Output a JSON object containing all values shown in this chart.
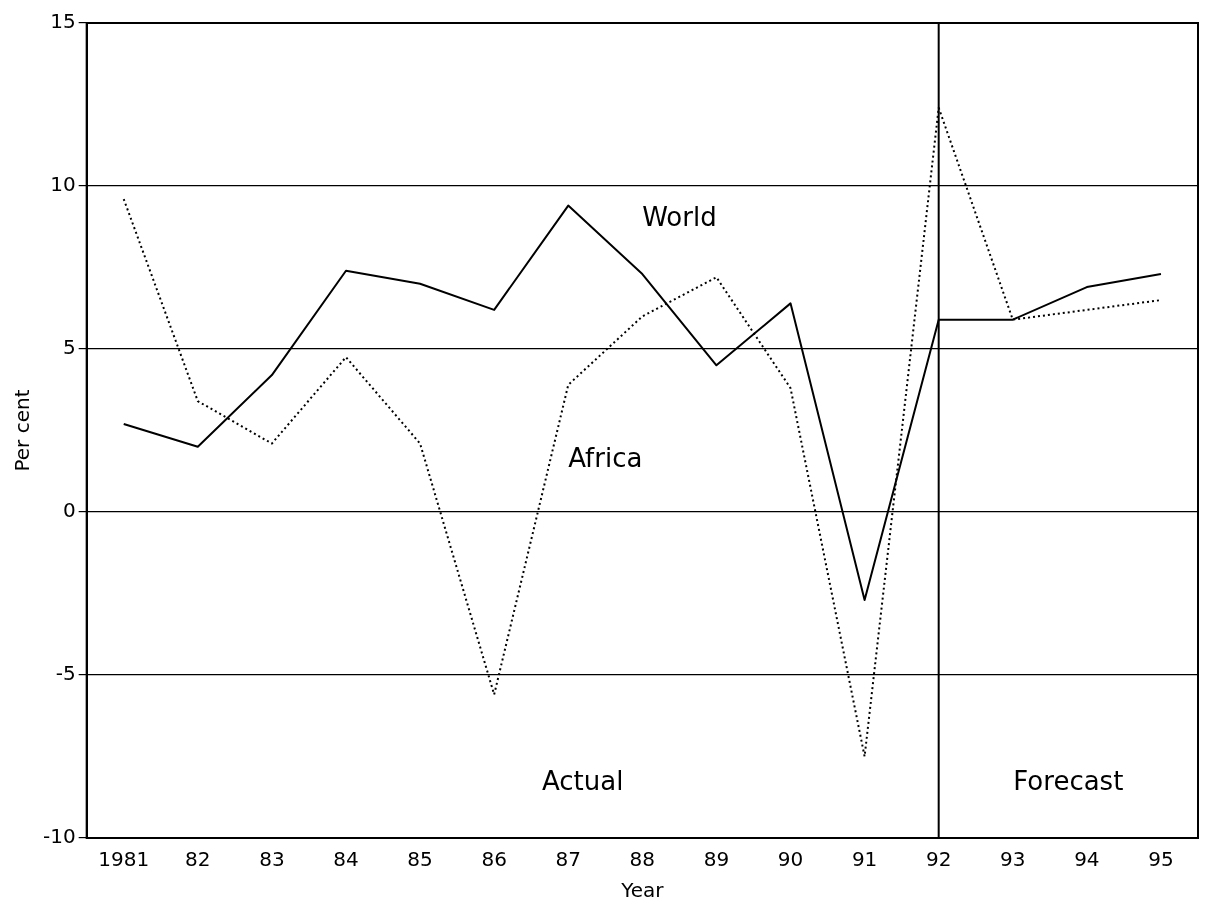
{
  "chart_data": {
    "type": "line",
    "xlabel": "Year",
    "ylabel": "Per cent",
    "categories": [
      "1981",
      "82",
      "83",
      "84",
      "85",
      "86",
      "87",
      "88",
      "89",
      "90",
      "91",
      "92",
      "93",
      "94",
      "95"
    ],
    "series": [
      {
        "name": "World",
        "color": "#000000",
        "line_style": "solid",
        "values": [
          2.7,
          2.0,
          4.2,
          7.4,
          7.0,
          6.2,
          9.4,
          7.3,
          4.5,
          6.4,
          -2.7,
          5.9,
          5.9,
          6.9,
          7.3
        ]
      },
      {
        "name": "Africa",
        "color": "#000000",
        "line_style": "dotted",
        "values": [
          9.6,
          3.4,
          2.1,
          4.75,
          2.1,
          -5.6,
          3.9,
          6.0,
          7.2,
          3.8,
          -7.5,
          12.4,
          5.9,
          6.2,
          6.5
        ]
      }
    ],
    "ylim": [
      -10,
      15
    ],
    "yticks": [
      -10,
      -5,
      0,
      5,
      10,
      15
    ],
    "grid": "y",
    "legend": false,
    "marker": "none",
    "ref_lines": [
      {
        "axis": "x",
        "value": "92",
        "color": "#000000",
        "line_style": "solid"
      }
    ],
    "annotations": [
      "Actual",
      "Forecast"
    ]
  }
}
